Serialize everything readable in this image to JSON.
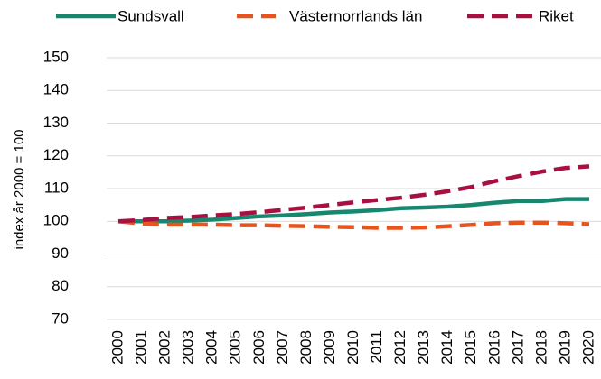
{
  "chart_data": {
    "type": "line",
    "y_label": "index år 2000 = 100",
    "categories": [
      "2000",
      "2001",
      "2002",
      "2003",
      "2004",
      "2005",
      "2006",
      "2007",
      "2008",
      "2009",
      "2010",
      "2011",
      "2012",
      "2013",
      "2014",
      "2015",
      "2016",
      "2017",
      "2018",
      "2019",
      "2020"
    ],
    "series": [
      {
        "name": "Sundsvall",
        "color": "#17876f",
        "style": "solid",
        "values": [
          100,
          100,
          100,
          100.2,
          100.5,
          101,
          101.5,
          101.8,
          102.2,
          102.7,
          103,
          103.4,
          104,
          104.2,
          104.5,
          105,
          105.7,
          106.2,
          106.2,
          106.8,
          106.8
        ]
      },
      {
        "name": "Västernorrlands län",
        "color": "#e8541e",
        "style": "dashed",
        "values": [
          100,
          99.3,
          99,
          99,
          99,
          98.8,
          98.8,
          98.6,
          98.5,
          98.3,
          98.2,
          98,
          98,
          98.1,
          98.5,
          98.9,
          99.4,
          99.6,
          99.6,
          99.4,
          99.1
        ]
      },
      {
        "name": "Riket",
        "color": "#a8103f",
        "style": "dashed",
        "values": [
          100,
          100.4,
          101,
          101.3,
          101.8,
          102.2,
          102.8,
          103.5,
          104.2,
          105,
          105.8,
          106.5,
          107.2,
          108.1,
          109.2,
          110.5,
          112.3,
          113.8,
          115.2,
          116.3,
          116.8
        ]
      }
    ],
    "ylim": [
      70,
      150
    ],
    "yticks": [
      70,
      80,
      90,
      100,
      110,
      120,
      130,
      140,
      150
    ],
    "grid": true,
    "legend": "top"
  }
}
